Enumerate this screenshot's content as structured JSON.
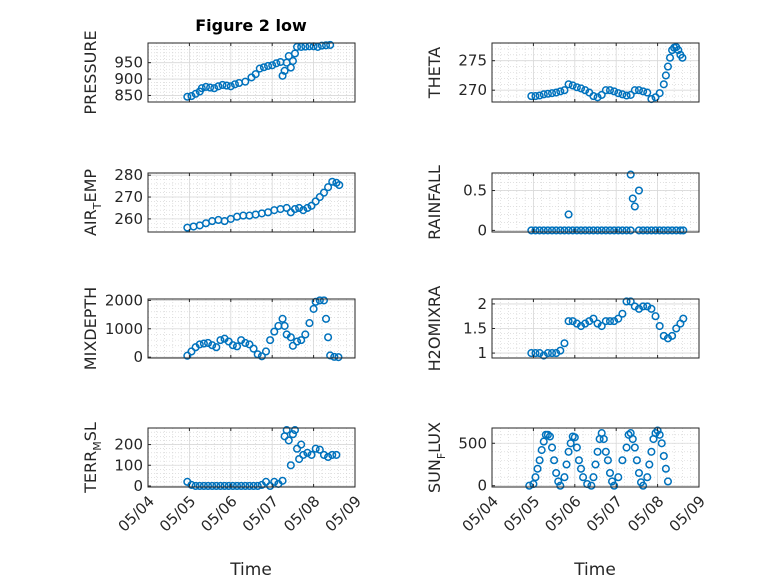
{
  "figure": {
    "title": "Figure 2 low",
    "marker_color": "#0072BD",
    "axis_color": "#262626",
    "grid": true,
    "x_axis_label": "Time",
    "x_ticks": [
      "05/04",
      "05/05",
      "05/06",
      "05/07",
      "05/08",
      "05/09"
    ]
  },
  "chart_data": [
    {
      "type": "scatter",
      "ylabel_main": "PRESSURE",
      "ylabel_sub": "",
      "ylabel_tail": "",
      "xlim": [
        4,
        9
      ],
      "ylim": [
        830,
        1010
      ],
      "yticks": [
        850,
        900,
        950
      ],
      "points": [
        [
          4.95,
          846
        ],
        [
          5.05,
          848
        ],
        [
          5.15,
          855
        ],
        [
          5.25,
          862
        ],
        [
          5.3,
          872
        ],
        [
          5.4,
          876
        ],
        [
          5.5,
          874
        ],
        [
          5.6,
          872
        ],
        [
          5.7,
          878
        ],
        [
          5.8,
          882
        ],
        [
          5.9,
          880
        ],
        [
          6.0,
          878
        ],
        [
          6.1,
          884
        ],
        [
          6.2,
          888
        ],
        [
          6.35,
          892
        ],
        [
          6.5,
          905
        ],
        [
          6.6,
          915
        ],
        [
          6.7,
          932
        ],
        [
          6.8,
          936
        ],
        [
          6.9,
          940
        ],
        [
          7.0,
          942
        ],
        [
          7.1,
          948
        ],
        [
          7.2,
          952
        ],
        [
          7.25,
          910
        ],
        [
          7.3,
          925
        ],
        [
          7.35,
          950
        ],
        [
          7.4,
          970
        ],
        [
          7.45,
          935
        ],
        [
          7.5,
          955
        ],
        [
          7.55,
          978
        ],
        [
          7.6,
          998
        ],
        [
          7.7,
          998
        ],
        [
          7.8,
          999
        ],
        [
          7.9,
          1000
        ],
        [
          8.0,
          1000
        ],
        [
          8.1,
          998
        ],
        [
          8.2,
          1002
        ],
        [
          8.3,
          1003
        ],
        [
          8.4,
          1004
        ]
      ]
    },
    {
      "type": "scatter",
      "ylabel_main": "THETA",
      "ylabel_sub": "",
      "ylabel_tail": "",
      "xlim": [
        4,
        9
      ],
      "ylim": [
        268,
        278
      ],
      "yticks": [
        270,
        275
      ],
      "points": [
        [
          4.95,
          269
        ],
        [
          5.05,
          269
        ],
        [
          5.15,
          269.1
        ],
        [
          5.25,
          269.3
        ],
        [
          5.35,
          269.4
        ],
        [
          5.45,
          269.5
        ],
        [
          5.55,
          269.6
        ],
        [
          5.65,
          269.8
        ],
        [
          5.75,
          270
        ],
        [
          5.85,
          271
        ],
        [
          5.95,
          270.8
        ],
        [
          6.05,
          270.5
        ],
        [
          6.15,
          270.3
        ],
        [
          6.25,
          270.0
        ],
        [
          6.35,
          269.6
        ],
        [
          6.45,
          269.0
        ],
        [
          6.55,
          268.8
        ],
        [
          6.65,
          269.2
        ],
        [
          6.75,
          270.0
        ],
        [
          6.85,
          270.0
        ],
        [
          6.95,
          269.8
        ],
        [
          7.05,
          269.5
        ],
        [
          7.15,
          269.3
        ],
        [
          7.25,
          269.1
        ],
        [
          7.35,
          269.2
        ],
        [
          7.45,
          270.0
        ],
        [
          7.55,
          270.0
        ],
        [
          7.65,
          269.8
        ],
        [
          7.75,
          269.6
        ],
        [
          7.85,
          268.5
        ],
        [
          7.95,
          268.8
        ],
        [
          8.05,
          269.5
        ],
        [
          8.15,
          271.0
        ],
        [
          8.2,
          272.5
        ],
        [
          8.25,
          274.0
        ],
        [
          8.3,
          275.5
        ],
        [
          8.35,
          276.8
        ],
        [
          8.4,
          277.2
        ],
        [
          8.45,
          277.3
        ],
        [
          8.5,
          276.8
        ],
        [
          8.55,
          276.0
        ],
        [
          8.6,
          275.5
        ]
      ]
    },
    {
      "type": "scatter",
      "ylabel_main": "AIR",
      "ylabel_sub": "T",
      "ylabel_tail": "EMP",
      "xlim": [
        4,
        9
      ],
      "ylim": [
        254,
        281
      ],
      "yticks": [
        260,
        270,
        280
      ],
      "points": [
        [
          4.95,
          256
        ],
        [
          5.1,
          256.5
        ],
        [
          5.25,
          257
        ],
        [
          5.4,
          258
        ],
        [
          5.55,
          259
        ],
        [
          5.7,
          259.5
        ],
        [
          5.85,
          259
        ],
        [
          6.0,
          260
        ],
        [
          6.15,
          261
        ],
        [
          6.3,
          261.5
        ],
        [
          6.45,
          261.5
        ],
        [
          6.6,
          262
        ],
        [
          6.75,
          262.5
        ],
        [
          6.9,
          263
        ],
        [
          7.05,
          264
        ],
        [
          7.2,
          264.5
        ],
        [
          7.35,
          265
        ],
        [
          7.45,
          263
        ],
        [
          7.55,
          264.5
        ],
        [
          7.65,
          265
        ],
        [
          7.75,
          264
        ],
        [
          7.85,
          265
        ],
        [
          7.95,
          266
        ],
        [
          8.05,
          268
        ],
        [
          8.15,
          270
        ],
        [
          8.25,
          272
        ],
        [
          8.35,
          274.5
        ],
        [
          8.45,
          277
        ],
        [
          8.55,
          276.5
        ],
        [
          8.62,
          275.5
        ]
      ]
    },
    {
      "type": "scatter",
      "ylabel_main": "RAINFALL",
      "ylabel_sub": "",
      "ylabel_tail": "",
      "xlim": [
        4,
        9
      ],
      "ylim": [
        -0.02,
        0.72
      ],
      "yticks": [
        0,
        0.5
      ],
      "points": [
        [
          4.95,
          0
        ],
        [
          5.05,
          0
        ],
        [
          5.15,
          0
        ],
        [
          5.25,
          0
        ],
        [
          5.35,
          0
        ],
        [
          5.45,
          0
        ],
        [
          5.55,
          0
        ],
        [
          5.65,
          0
        ],
        [
          5.75,
          0
        ],
        [
          5.85,
          0
        ],
        [
          5.85,
          0.2
        ],
        [
          5.95,
          0
        ],
        [
          6.05,
          0
        ],
        [
          6.15,
          0
        ],
        [
          6.25,
          0
        ],
        [
          6.35,
          0
        ],
        [
          6.45,
          0
        ],
        [
          6.55,
          0
        ],
        [
          6.65,
          0
        ],
        [
          6.75,
          0
        ],
        [
          6.85,
          0
        ],
        [
          6.95,
          0
        ],
        [
          7.05,
          0
        ],
        [
          7.15,
          0
        ],
        [
          7.25,
          0
        ],
        [
          7.35,
          0
        ],
        [
          7.35,
          0.7
        ],
        [
          7.4,
          0.4
        ],
        [
          7.45,
          0.3
        ],
        [
          7.55,
          0.5
        ],
        [
          7.55,
          0
        ],
        [
          7.65,
          0
        ],
        [
          7.75,
          0
        ],
        [
          7.85,
          0
        ],
        [
          7.95,
          0
        ],
        [
          8.05,
          0
        ],
        [
          8.15,
          0
        ],
        [
          8.25,
          0
        ],
        [
          8.35,
          0
        ],
        [
          8.45,
          0
        ],
        [
          8.55,
          0
        ],
        [
          8.62,
          0
        ]
      ]
    },
    {
      "type": "scatter",
      "ylabel_main": "MIXDEPTH",
      "ylabel_sub": "",
      "ylabel_tail": "",
      "xlim": [
        4,
        9
      ],
      "ylim": [
        -30,
        2050
      ],
      "yticks": [
        0,
        1000,
        2000
      ],
      "points": [
        [
          4.95,
          50
        ],
        [
          5.05,
          200
        ],
        [
          5.15,
          350
        ],
        [
          5.25,
          450
        ],
        [
          5.35,
          480
        ],
        [
          5.45,
          500
        ],
        [
          5.55,
          420
        ],
        [
          5.65,
          350
        ],
        [
          5.75,
          600
        ],
        [
          5.85,
          650
        ],
        [
          5.95,
          550
        ],
        [
          6.05,
          420
        ],
        [
          6.15,
          380
        ],
        [
          6.25,
          600
        ],
        [
          6.35,
          500
        ],
        [
          6.45,
          450
        ],
        [
          6.55,
          300
        ],
        [
          6.65,
          100
        ],
        [
          6.75,
          30
        ],
        [
          6.85,
          200
        ],
        [
          6.95,
          600
        ],
        [
          7.05,
          900
        ],
        [
          7.15,
          1100
        ],
        [
          7.25,
          1350
        ],
        [
          7.3,
          1100
        ],
        [
          7.35,
          800
        ],
        [
          7.45,
          700
        ],
        [
          7.5,
          400
        ],
        [
          7.6,
          550
        ],
        [
          7.7,
          600
        ],
        [
          7.8,
          800
        ],
        [
          7.9,
          1200
        ],
        [
          8.0,
          1700
        ],
        [
          8.05,
          1950
        ],
        [
          8.15,
          2000
        ],
        [
          8.25,
          2000
        ],
        [
          8.3,
          1350
        ],
        [
          8.35,
          700
        ],
        [
          8.4,
          60
        ],
        [
          8.5,
          10
        ],
        [
          8.6,
          0
        ]
      ]
    },
    {
      "type": "scatter",
      "ylabel_main": "H2OMIXRA",
      "ylabel_sub": "",
      "ylabel_tail": "",
      "xlim": [
        4,
        9
      ],
      "ylim": [
        0.9,
        2.1
      ],
      "yticks": [
        1,
        1.5,
        2
      ],
      "points": [
        [
          4.95,
          1.0
        ],
        [
          5.05,
          1.0
        ],
        [
          5.15,
          1.0
        ],
        [
          5.25,
          0.95
        ],
        [
          5.35,
          1.0
        ],
        [
          5.45,
          1.0
        ],
        [
          5.55,
          1.0
        ],
        [
          5.65,
          1.05
        ],
        [
          5.75,
          1.2
        ],
        [
          5.85,
          1.65
        ],
        [
          5.95,
          1.65
        ],
        [
          6.05,
          1.6
        ],
        [
          6.15,
          1.55
        ],
        [
          6.25,
          1.6
        ],
        [
          6.35,
          1.65
        ],
        [
          6.45,
          1.7
        ],
        [
          6.55,
          1.6
        ],
        [
          6.65,
          1.55
        ],
        [
          6.75,
          1.65
        ],
        [
          6.85,
          1.65
        ],
        [
          6.95,
          1.65
        ],
        [
          7.05,
          1.7
        ],
        [
          7.15,
          1.8
        ],
        [
          7.25,
          2.05
        ],
        [
          7.35,
          2.05
        ],
        [
          7.45,
          1.95
        ],
        [
          7.55,
          1.9
        ],
        [
          7.65,
          1.95
        ],
        [
          7.75,
          1.95
        ],
        [
          7.85,
          1.9
        ],
        [
          7.95,
          1.75
        ],
        [
          8.05,
          1.55
        ],
        [
          8.15,
          1.35
        ],
        [
          8.25,
          1.3
        ],
        [
          8.35,
          1.35
        ],
        [
          8.45,
          1.5
        ],
        [
          8.55,
          1.6
        ],
        [
          8.62,
          1.7
        ]
      ]
    },
    {
      "type": "scatter",
      "ylabel_main": "TERR",
      "ylabel_sub": "M",
      "ylabel_tail": "SL",
      "xlim": [
        4,
        9
      ],
      "ylim": [
        -5,
        280
      ],
      "yticks": [
        0,
        100,
        200
      ],
      "points": [
        [
          4.95,
          20
        ],
        [
          5.05,
          5
        ],
        [
          5.15,
          0
        ],
        [
          5.25,
          0
        ],
        [
          5.35,
          0
        ],
        [
          5.45,
          0
        ],
        [
          5.55,
          0
        ],
        [
          5.65,
          0
        ],
        [
          5.75,
          0
        ],
        [
          5.85,
          0
        ],
        [
          5.95,
          0
        ],
        [
          6.05,
          0
        ],
        [
          6.15,
          0
        ],
        [
          6.25,
          0
        ],
        [
          6.35,
          0
        ],
        [
          6.45,
          0
        ],
        [
          6.55,
          0
        ],
        [
          6.65,
          0
        ],
        [
          6.75,
          5
        ],
        [
          6.85,
          20
        ],
        [
          6.95,
          0
        ],
        [
          7.05,
          20
        ],
        [
          7.15,
          10
        ],
        [
          7.25,
          25
        ],
        [
          7.3,
          240
        ],
        [
          7.35,
          270
        ],
        [
          7.4,
          220
        ],
        [
          7.45,
          100
        ],
        [
          7.5,
          250
        ],
        [
          7.55,
          270
        ],
        [
          7.6,
          180
        ],
        [
          7.65,
          130
        ],
        [
          7.7,
          200
        ],
        [
          7.75,
          150
        ],
        [
          7.85,
          160
        ],
        [
          7.95,
          150
        ],
        [
          8.05,
          180
        ],
        [
          8.15,
          175
        ],
        [
          8.25,
          150
        ],
        [
          8.35,
          140
        ],
        [
          8.45,
          150
        ],
        [
          8.55,
          150
        ]
      ]
    },
    {
      "type": "scatter",
      "ylabel_main": "SUN",
      "ylabel_sub": "F",
      "ylabel_tail": "LUX",
      "xlim": [
        4,
        9
      ],
      "ylim": [
        -15,
        680
      ],
      "yticks": [
        0,
        500
      ],
      "points": [
        [
          4.9,
          0
        ],
        [
          5.0,
          20
        ],
        [
          5.05,
          100
        ],
        [
          5.1,
          200
        ],
        [
          5.15,
          300
        ],
        [
          5.2,
          420
        ],
        [
          5.25,
          520
        ],
        [
          5.3,
          600
        ],
        [
          5.35,
          600
        ],
        [
          5.4,
          580
        ],
        [
          5.45,
          450
        ],
        [
          5.5,
          300
        ],
        [
          5.55,
          150
        ],
        [
          5.6,
          50
        ],
        [
          5.65,
          0
        ],
        [
          5.75,
          100
        ],
        [
          5.8,
          250
        ],
        [
          5.85,
          400
        ],
        [
          5.9,
          500
        ],
        [
          5.95,
          580
        ],
        [
          6.0,
          570
        ],
        [
          6.05,
          450
        ],
        [
          6.1,
          300
        ],
        [
          6.15,
          200
        ],
        [
          6.2,
          100
        ],
        [
          6.3,
          20
        ],
        [
          6.4,
          0
        ],
        [
          6.45,
          100
        ],
        [
          6.5,
          250
        ],
        [
          6.55,
          400
        ],
        [
          6.6,
          550
        ],
        [
          6.65,
          620
        ],
        [
          6.7,
          550
        ],
        [
          6.75,
          400
        ],
        [
          6.8,
          300
        ],
        [
          6.85,
          150
        ],
        [
          6.9,
          50
        ],
        [
          6.95,
          0
        ],
        [
          7.05,
          100
        ],
        [
          7.15,
          300
        ],
        [
          7.25,
          450
        ],
        [
          7.3,
          600
        ],
        [
          7.35,
          620
        ],
        [
          7.4,
          550
        ],
        [
          7.45,
          450
        ],
        [
          7.5,
          300
        ],
        [
          7.55,
          150
        ],
        [
          7.6,
          40
        ],
        [
          7.65,
          0
        ],
        [
          7.75,
          100
        ],
        [
          7.8,
          250
        ],
        [
          7.85,
          400
        ],
        [
          7.9,
          550
        ],
        [
          7.95,
          620
        ],
        [
          8.0,
          650
        ],
        [
          8.05,
          600
        ],
        [
          8.1,
          500
        ],
        [
          8.15,
          350
        ],
        [
          8.2,
          200
        ],
        [
          8.25,
          50
        ]
      ]
    }
  ]
}
